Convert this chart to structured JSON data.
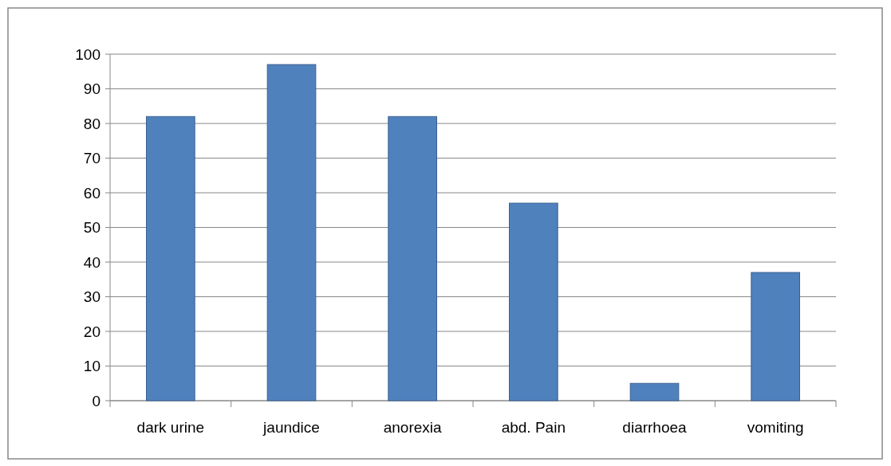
{
  "chart_data": {
    "type": "bar",
    "categories": [
      "dark urine",
      "jaundice",
      "anorexia",
      "abd. Pain",
      "diarrhoea",
      "vomiting"
    ],
    "values": [
      82,
      97,
      82,
      57,
      5,
      37
    ],
    "color": "#4f81bd",
    "ylim": [
      0,
      100
    ],
    "yticks": [
      0,
      10,
      20,
      30,
      40,
      50,
      60,
      70,
      80,
      90,
      100
    ],
    "grid": "y"
  }
}
